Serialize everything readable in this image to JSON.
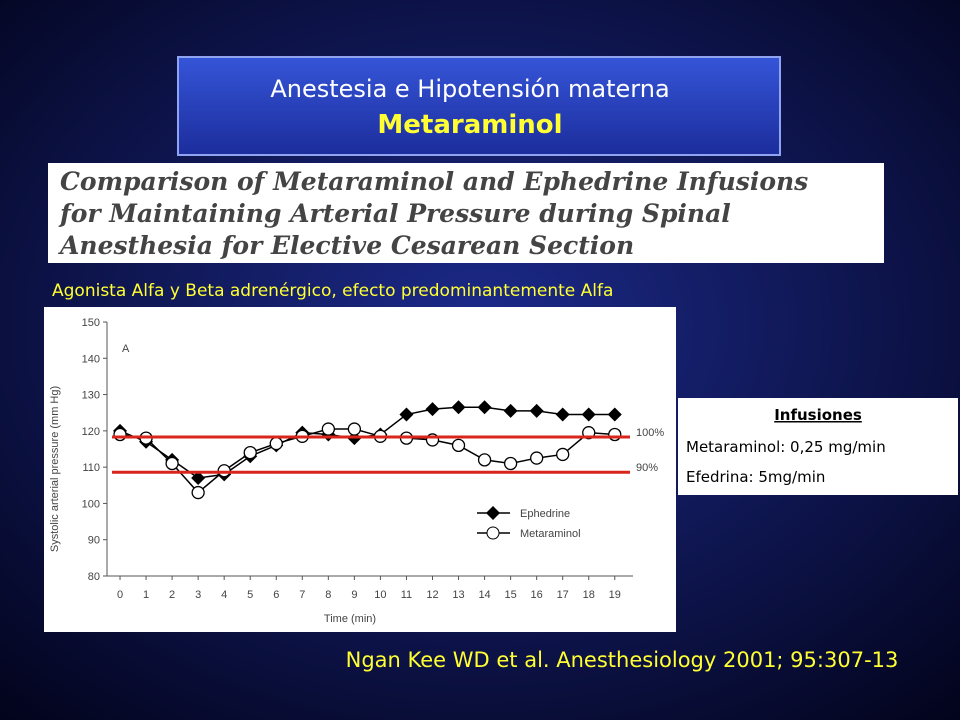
{
  "title": {
    "line1": "Anestesia e Hipotensión materna",
    "line2": "Metaraminol"
  },
  "article_title": {
    "lines": [
      "Comparison of Metaraminol and Ephedrine Infusions",
      "for Maintaining Arterial Pressure during Spinal",
      "Anesthesia for Elective Cesarean Section"
    ]
  },
  "subtitle": "Agonista Alfa y Beta adrenérgico, efecto predominantemente Alfa",
  "infusions": {
    "heading": "Infusiones",
    "items": [
      "Metaraminol: 0,25 mg/min",
      "Efedrina: 5mg/min"
    ]
  },
  "citation": "Ngan Kee WD et al. Anesthesiology 2001; 95:307-13",
  "chart_data": {
    "type": "line",
    "panel_label": "A",
    "x_label": "Time (min)",
    "y_label": "Systolic arterial pressure (mm Hg)",
    "x": [
      0,
      1,
      2,
      3,
      4,
      5,
      6,
      7,
      8,
      9,
      10,
      11,
      12,
      13,
      14,
      15,
      16,
      17,
      18,
      19
    ],
    "xlim": [
      -0.5,
      19.7
    ],
    "xticks": [
      0,
      1,
      2,
      3,
      4,
      5,
      6,
      7,
      8,
      9,
      10,
      11,
      12,
      13,
      14,
      15,
      16,
      17,
      18,
      19
    ],
    "ylim": [
      80,
      150
    ],
    "yticks": [
      80,
      90,
      100,
      110,
      120,
      130,
      140,
      150
    ],
    "series": [
      {
        "name": "Ephedrine",
        "color": "#000000",
        "marker": "diamond",
        "values": [
          120,
          117,
          112,
          107,
          108,
          113,
          116,
          119.5,
          119,
          118,
          119,
          124.5,
          126,
          126.5,
          126.5,
          125.5,
          125.5,
          124.5,
          124.5,
          124.5
        ]
      },
      {
        "name": "Metaraminol",
        "color": "#000000",
        "marker": "circle",
        "values": [
          119,
          118,
          111,
          103,
          109,
          114,
          116.5,
          118.5,
          120.5,
          120.5,
          118.5,
          118,
          117.5,
          116,
          112,
          111,
          112.5,
          113.5,
          119.5,
          119
        ]
      }
    ],
    "reference_lines": [
      {
        "value": 118.3,
        "label": "100%",
        "color": "#d8261c"
      },
      {
        "value": 108.6,
        "label": "90%",
        "color": "#d8261c"
      }
    ]
  }
}
